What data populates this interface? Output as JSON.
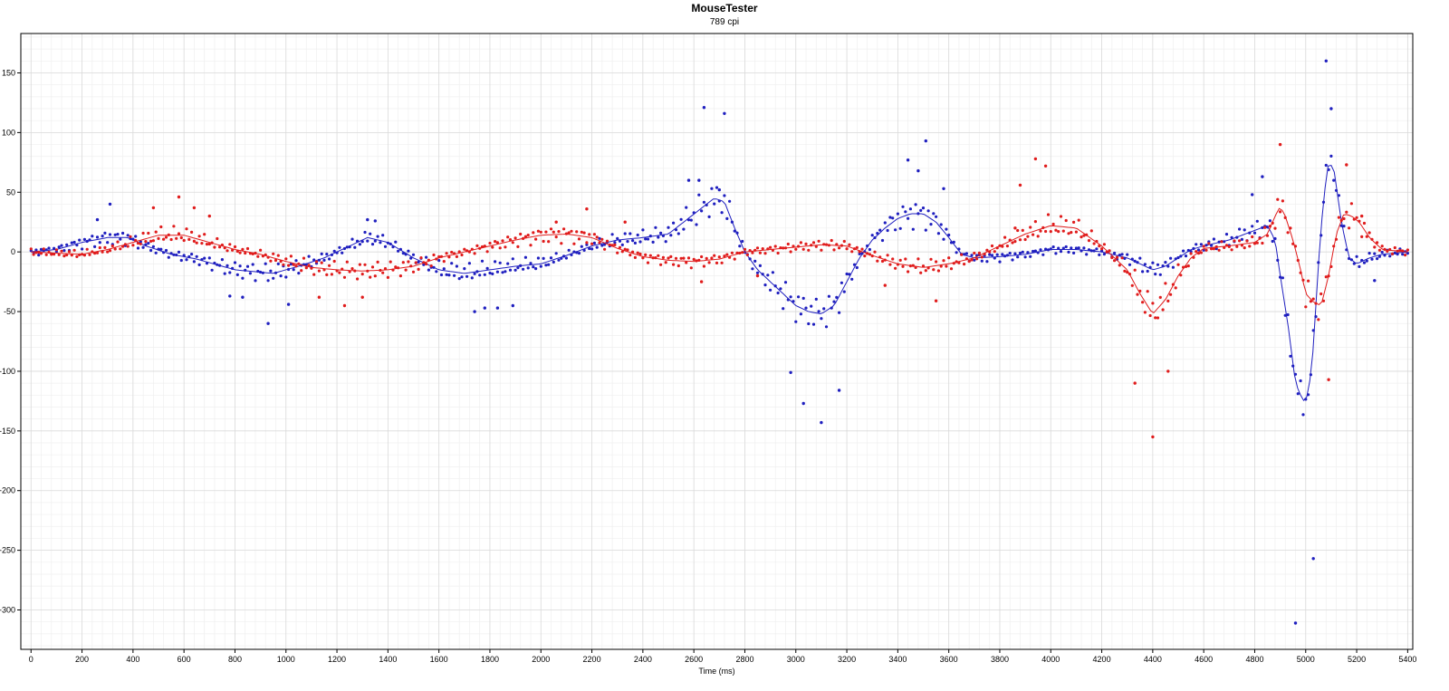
{
  "chart_data": {
    "type": "scatter",
    "title": "MouseTester",
    "subtitle": "789 cpi",
    "xlabel": "Time (ms)",
    "ylabel": "",
    "xlim": [
      -40,
      5420
    ],
    "ylim": [
      -333,
      183
    ],
    "xticks": [
      0,
      200,
      400,
      600,
      800,
      1000,
      1200,
      1400,
      1600,
      1800,
      2000,
      2200,
      2400,
      2600,
      2800,
      3000,
      3200,
      3400,
      3600,
      3800,
      4000,
      4200,
      4400,
      4600,
      4800,
      5000,
      5200,
      5400
    ],
    "yticks": [
      150,
      100,
      50,
      0,
      -50,
      -100,
      -150,
      -200,
      -250,
      -300
    ],
    "grid": true,
    "legend": "none",
    "colors": {
      "series_x": "#1f1fbf",
      "series_y": "#e01c1c",
      "grid_major": "#d9d9d9",
      "grid_minor": "#efefef"
    },
    "series": [
      {
        "color": "#1f1fbf",
        "curve": [
          [
            0,
            0
          ],
          [
            100,
            2
          ],
          [
            200,
            8
          ],
          [
            300,
            12
          ],
          [
            380,
            12
          ],
          [
            450,
            5
          ],
          [
            550,
            -2
          ],
          [
            650,
            -6
          ],
          [
            800,
            -15
          ],
          [
            950,
            -18
          ],
          [
            1050,
            -12
          ],
          [
            1150,
            -5
          ],
          [
            1250,
            5
          ],
          [
            1320,
            12
          ],
          [
            1400,
            8
          ],
          [
            1500,
            -5
          ],
          [
            1600,
            -15
          ],
          [
            1700,
            -18
          ],
          [
            1800,
            -15
          ],
          [
            1900,
            -12
          ],
          [
            2000,
            -10
          ],
          [
            2100,
            -3
          ],
          [
            2200,
            5
          ],
          [
            2300,
            10
          ],
          [
            2400,
            12
          ],
          [
            2500,
            15
          ],
          [
            2560,
            25
          ],
          [
            2620,
            35
          ],
          [
            2680,
            45
          ],
          [
            2720,
            42
          ],
          [
            2760,
            20
          ],
          [
            2800,
            0
          ],
          [
            2850,
            -15
          ],
          [
            2900,
            -25
          ],
          [
            2950,
            -35
          ],
          [
            3000,
            -45
          ],
          [
            3050,
            -50
          ],
          [
            3100,
            -52
          ],
          [
            3150,
            -45
          ],
          [
            3200,
            -25
          ],
          [
            3250,
            -5
          ],
          [
            3300,
            10
          ],
          [
            3350,
            20
          ],
          [
            3400,
            28
          ],
          [
            3450,
            32
          ],
          [
            3500,
            32
          ],
          [
            3550,
            25
          ],
          [
            3600,
            12
          ],
          [
            3650,
            -2
          ],
          [
            3700,
            -5
          ],
          [
            3800,
            -4
          ],
          [
            3900,
            -2
          ],
          [
            4000,
            2
          ],
          [
            4100,
            2
          ],
          [
            4200,
            0
          ],
          [
            4300,
            -5
          ],
          [
            4350,
            -10
          ],
          [
            4400,
            -15
          ],
          [
            4450,
            -12
          ],
          [
            4500,
            -5
          ],
          [
            4550,
            2
          ],
          [
            4600,
            5
          ],
          [
            4700,
            10
          ],
          [
            4800,
            18
          ],
          [
            4850,
            22
          ],
          [
            4880,
            10
          ],
          [
            4900,
            -20
          ],
          [
            4930,
            -60
          ],
          [
            4960,
            -110
          ],
          [
            4990,
            -125
          ],
          [
            5010,
            -120
          ],
          [
            5030,
            -80
          ],
          [
            5050,
            -10
          ],
          [
            5070,
            45
          ],
          [
            5090,
            75
          ],
          [
            5110,
            70
          ],
          [
            5140,
            25
          ],
          [
            5170,
            -5
          ],
          [
            5200,
            -10
          ],
          [
            5250,
            -5
          ],
          [
            5300,
            -2
          ],
          [
            5400,
            0
          ]
        ],
        "outliers": [
          [
            310,
            40
          ],
          [
            260,
            27
          ],
          [
            1320,
            27
          ],
          [
            1350,
            26
          ],
          [
            930,
            -60
          ],
          [
            780,
            -37
          ],
          [
            830,
            -38
          ],
          [
            1010,
            -44
          ],
          [
            1740,
            -50
          ],
          [
            1890,
            -45
          ],
          [
            1830,
            -47
          ],
          [
            1780,
            -47
          ],
          [
            2580,
            60
          ],
          [
            2620,
            60
          ],
          [
            2640,
            121
          ],
          [
            2720,
            116
          ],
          [
            2700,
            52
          ],
          [
            2980,
            -101
          ],
          [
            3030,
            -127
          ],
          [
            3100,
            -143
          ],
          [
            3170,
            -116
          ],
          [
            3440,
            77
          ],
          [
            3510,
            93
          ],
          [
            3580,
            53
          ],
          [
            3480,
            68
          ],
          [
            4830,
            63
          ],
          [
            4790,
            48
          ],
          [
            5080,
            160
          ],
          [
            5100,
            120
          ],
          [
            5030,
            -257
          ],
          [
            4960,
            -311
          ],
          [
            5270,
            -24
          ]
        ]
      },
      {
        "color": "#e01c1c",
        "curve": [
          [
            0,
            0
          ],
          [
            100,
            -1
          ],
          [
            200,
            -2
          ],
          [
            300,
            2
          ],
          [
            400,
            8
          ],
          [
            500,
            14
          ],
          [
            600,
            14
          ],
          [
            700,
            8
          ],
          [
            800,
            2
          ],
          [
            900,
            -2
          ],
          [
            1000,
            -8
          ],
          [
            1100,
            -13
          ],
          [
            1200,
            -15
          ],
          [
            1300,
            -16
          ],
          [
            1400,
            -15
          ],
          [
            1500,
            -12
          ],
          [
            1600,
            -5
          ],
          [
            1700,
            0
          ],
          [
            1800,
            5
          ],
          [
            1900,
            10
          ],
          [
            2000,
            14
          ],
          [
            2100,
            15
          ],
          [
            2200,
            12
          ],
          [
            2300,
            3
          ],
          [
            2400,
            -4
          ],
          [
            2500,
            -7
          ],
          [
            2600,
            -8
          ],
          [
            2700,
            -6
          ],
          [
            2800,
            0
          ],
          [
            2900,
            2
          ],
          [
            3000,
            4
          ],
          [
            3100,
            6
          ],
          [
            3200,
            5
          ],
          [
            3300,
            -3
          ],
          [
            3400,
            -10
          ],
          [
            3500,
            -13
          ],
          [
            3600,
            -10
          ],
          [
            3700,
            -5
          ],
          [
            3800,
            5
          ],
          [
            3900,
            15
          ],
          [
            4000,
            22
          ],
          [
            4100,
            20
          ],
          [
            4200,
            5
          ],
          [
            4300,
            -15
          ],
          [
            4350,
            -35
          ],
          [
            4400,
            -52
          ],
          [
            4450,
            -40
          ],
          [
            4500,
            -20
          ],
          [
            4550,
            -5
          ],
          [
            4600,
            3
          ],
          [
            4700,
            5
          ],
          [
            4800,
            8
          ],
          [
            4850,
            15
          ],
          [
            4880,
            30
          ],
          [
            4900,
            38
          ],
          [
            4920,
            30
          ],
          [
            4950,
            10
          ],
          [
            4980,
            -15
          ],
          [
            5000,
            -35
          ],
          [
            5030,
            -42
          ],
          [
            5060,
            -45
          ],
          [
            5090,
            -20
          ],
          [
            5120,
            15
          ],
          [
            5150,
            32
          ],
          [
            5180,
            30
          ],
          [
            5210,
            25
          ],
          [
            5250,
            12
          ],
          [
            5300,
            2
          ],
          [
            5400,
            0
          ]
        ],
        "outliers": [
          [
            580,
            46
          ],
          [
            480,
            37
          ],
          [
            640,
            37
          ],
          [
            700,
            30
          ],
          [
            1230,
            -45
          ],
          [
            1130,
            -38
          ],
          [
            1300,
            -38
          ],
          [
            2180,
            36
          ],
          [
            2060,
            25
          ],
          [
            2330,
            25
          ],
          [
            2630,
            -25
          ],
          [
            2850,
            -20
          ],
          [
            3350,
            -28
          ],
          [
            3550,
            -41
          ],
          [
            3880,
            56
          ],
          [
            3940,
            78
          ],
          [
            3980,
            72
          ],
          [
            3860,
            20
          ],
          [
            4330,
            -110
          ],
          [
            4400,
            -155
          ],
          [
            4460,
            -100
          ],
          [
            4900,
            90
          ],
          [
            5090,
            -107
          ],
          [
            5160,
            73
          ],
          [
            5220,
            30
          ]
        ]
      }
    ]
  }
}
